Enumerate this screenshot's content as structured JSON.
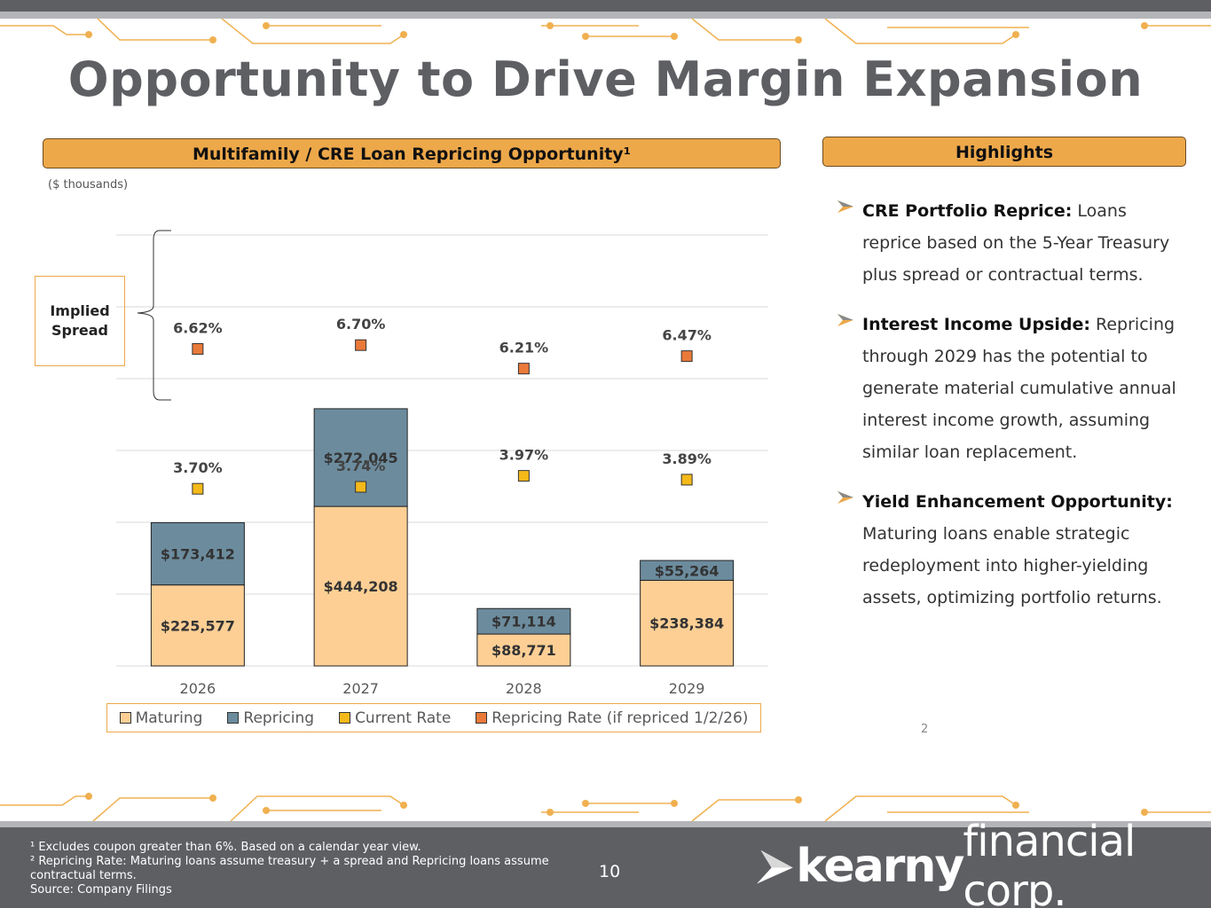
{
  "title": "Opportunity to Drive Margin Expansion",
  "left_panel": {
    "header": "Multifamily / CRE Loan Repricing Opportunity¹",
    "units": "($ thousands)",
    "implied_spread_label": "Implied Spread"
  },
  "chart_data": {
    "type": "bar",
    "stacked": true,
    "categories": [
      "2026",
      "2027",
      "2028",
      "2029"
    ],
    "series": [
      {
        "name": "Maturing",
        "values": [
          225577,
          444208,
          88771,
          238384
        ],
        "labels": [
          "$225,577",
          "$444,208",
          "$88,771",
          "$238,384"
        ],
        "color": "#fdcf95"
      },
      {
        "name": "Repricing",
        "values": [
          173412,
          272045,
          71114,
          55264
        ],
        "labels": [
          "$173,412",
          "$272,045",
          "$71,114",
          "$55,264"
        ],
        "color": "#6c8c9e"
      }
    ],
    "rate_series": [
      {
        "name": "Current Rate",
        "values": [
          3.7,
          3.74,
          3.97,
          3.89
        ],
        "labels": [
          "3.70%",
          "3.74%",
          "3.97%",
          "3.89%"
        ],
        "color": "#f5b91a"
      },
      {
        "name": "Repricing Rate (if repriced 1/2/26)",
        "values": [
          6.62,
          6.7,
          6.21,
          6.47
        ],
        "labels": [
          "6.62%",
          "6.70%",
          "6.21%",
          "6.47%"
        ],
        "color": "#ea7a3a"
      }
    ],
    "legend": [
      "Maturing",
      "Repricing",
      "Current Rate",
      "Repricing Rate (if repriced 1/2/26)"
    ],
    "ylim": [
      0,
      1200000
    ],
    "grid": true
  },
  "highlights": {
    "header": "Highlights",
    "items": [
      {
        "title": "CRE Portfolio Reprice:",
        "text": " Loans reprice based on the 5-Year Treasury plus spread or contractual terms."
      },
      {
        "title": "Interest Income Upside:",
        "text": " Repricing through 2029 has the potential to generate material cumulative annual interest income growth, assuming similar loan replacement."
      },
      {
        "title": "Yield Enhancement Opportunity:",
        "text": " Maturing loans enable strategic redeployment into higher-yielding assets, optimizing portfolio returns."
      }
    ],
    "small_number": "2"
  },
  "footer": {
    "footnotes": [
      "¹ Excludes coupon greater than 6%. Based on a calendar year view.",
      "² Repricing Rate: Maturing loans assume treasury + a spread and Repricing loans assume contractual terms.",
      "Source: Company Filings"
    ],
    "page_number": "10",
    "logo_bold": "kearny",
    "logo_light": "financial corp."
  },
  "colors": {
    "accent": "#eda84a",
    "dark_gray": "#5e5f63"
  }
}
